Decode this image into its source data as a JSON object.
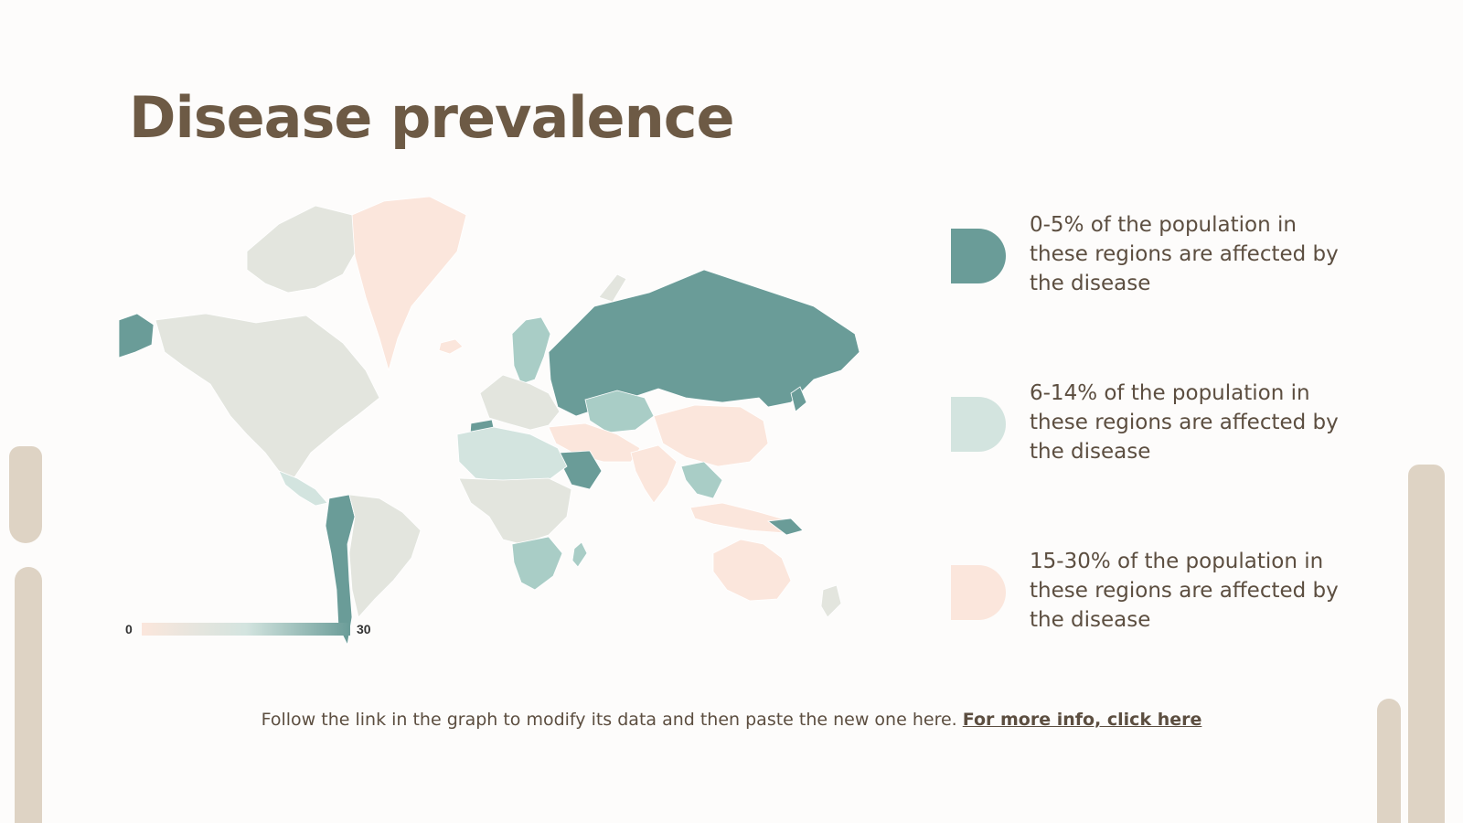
{
  "title": "Disease prevalence",
  "colors": {
    "dark": "#6a9c98",
    "mid": "#a9cdc6",
    "light": "#d3e4df",
    "peach": "#fbe6dc",
    "grey": "#e3e5de",
    "title": "#6d5a45",
    "decoration": "#ded3c4"
  },
  "map": {
    "scale_min": "0",
    "scale_max": "30",
    "regions": [
      {
        "name": "Alaska",
        "category": "dark"
      },
      {
        "name": "North America",
        "category": "grey"
      },
      {
        "name": "Greenland",
        "category": "peach"
      },
      {
        "name": "Iceland",
        "category": "peach"
      },
      {
        "name": "Scandinavia",
        "category": "mid"
      },
      {
        "name": "Western Europe",
        "category": "grey"
      },
      {
        "name": "Iberia",
        "category": "dark"
      },
      {
        "name": "Russia",
        "category": "dark"
      },
      {
        "name": "Kazakhstan",
        "category": "mid"
      },
      {
        "name": "Middle East",
        "category": "peach"
      },
      {
        "name": "Arabian Peninsula",
        "category": "dark"
      },
      {
        "name": "India",
        "category": "peach"
      },
      {
        "name": "China",
        "category": "peach"
      },
      {
        "name": "Japan",
        "category": "dark"
      },
      {
        "name": "Southeast Asia",
        "category": "mid"
      },
      {
        "name": "North Africa",
        "category": "light"
      },
      {
        "name": "Central Africa",
        "category": "grey"
      },
      {
        "name": "Southern Africa",
        "category": "mid"
      },
      {
        "name": "Madagascar",
        "category": "mid"
      },
      {
        "name": "Central America",
        "category": "light"
      },
      {
        "name": "South America West",
        "category": "dark"
      },
      {
        "name": "South America",
        "category": "grey"
      },
      {
        "name": "Australia",
        "category": "peach"
      },
      {
        "name": "New Zealand",
        "category": "grey"
      },
      {
        "name": "Indonesia",
        "category": "peach"
      },
      {
        "name": "New Guinea",
        "category": "dark"
      }
    ]
  },
  "legend": [
    {
      "text": "0-5% of the population in these regions are affected by the disease",
      "color": "#6a9c98"
    },
    {
      "text": "6-14% of the population in these regions are affected by the disease",
      "color": "#d3e4df"
    },
    {
      "text": "15-30% of the population in these regions are affected by the disease",
      "color": "#fbe6dc"
    }
  ],
  "footer": {
    "text": "Follow the link in the graph to modify its data and then paste the new one here.",
    "link": "For more info, click here"
  }
}
